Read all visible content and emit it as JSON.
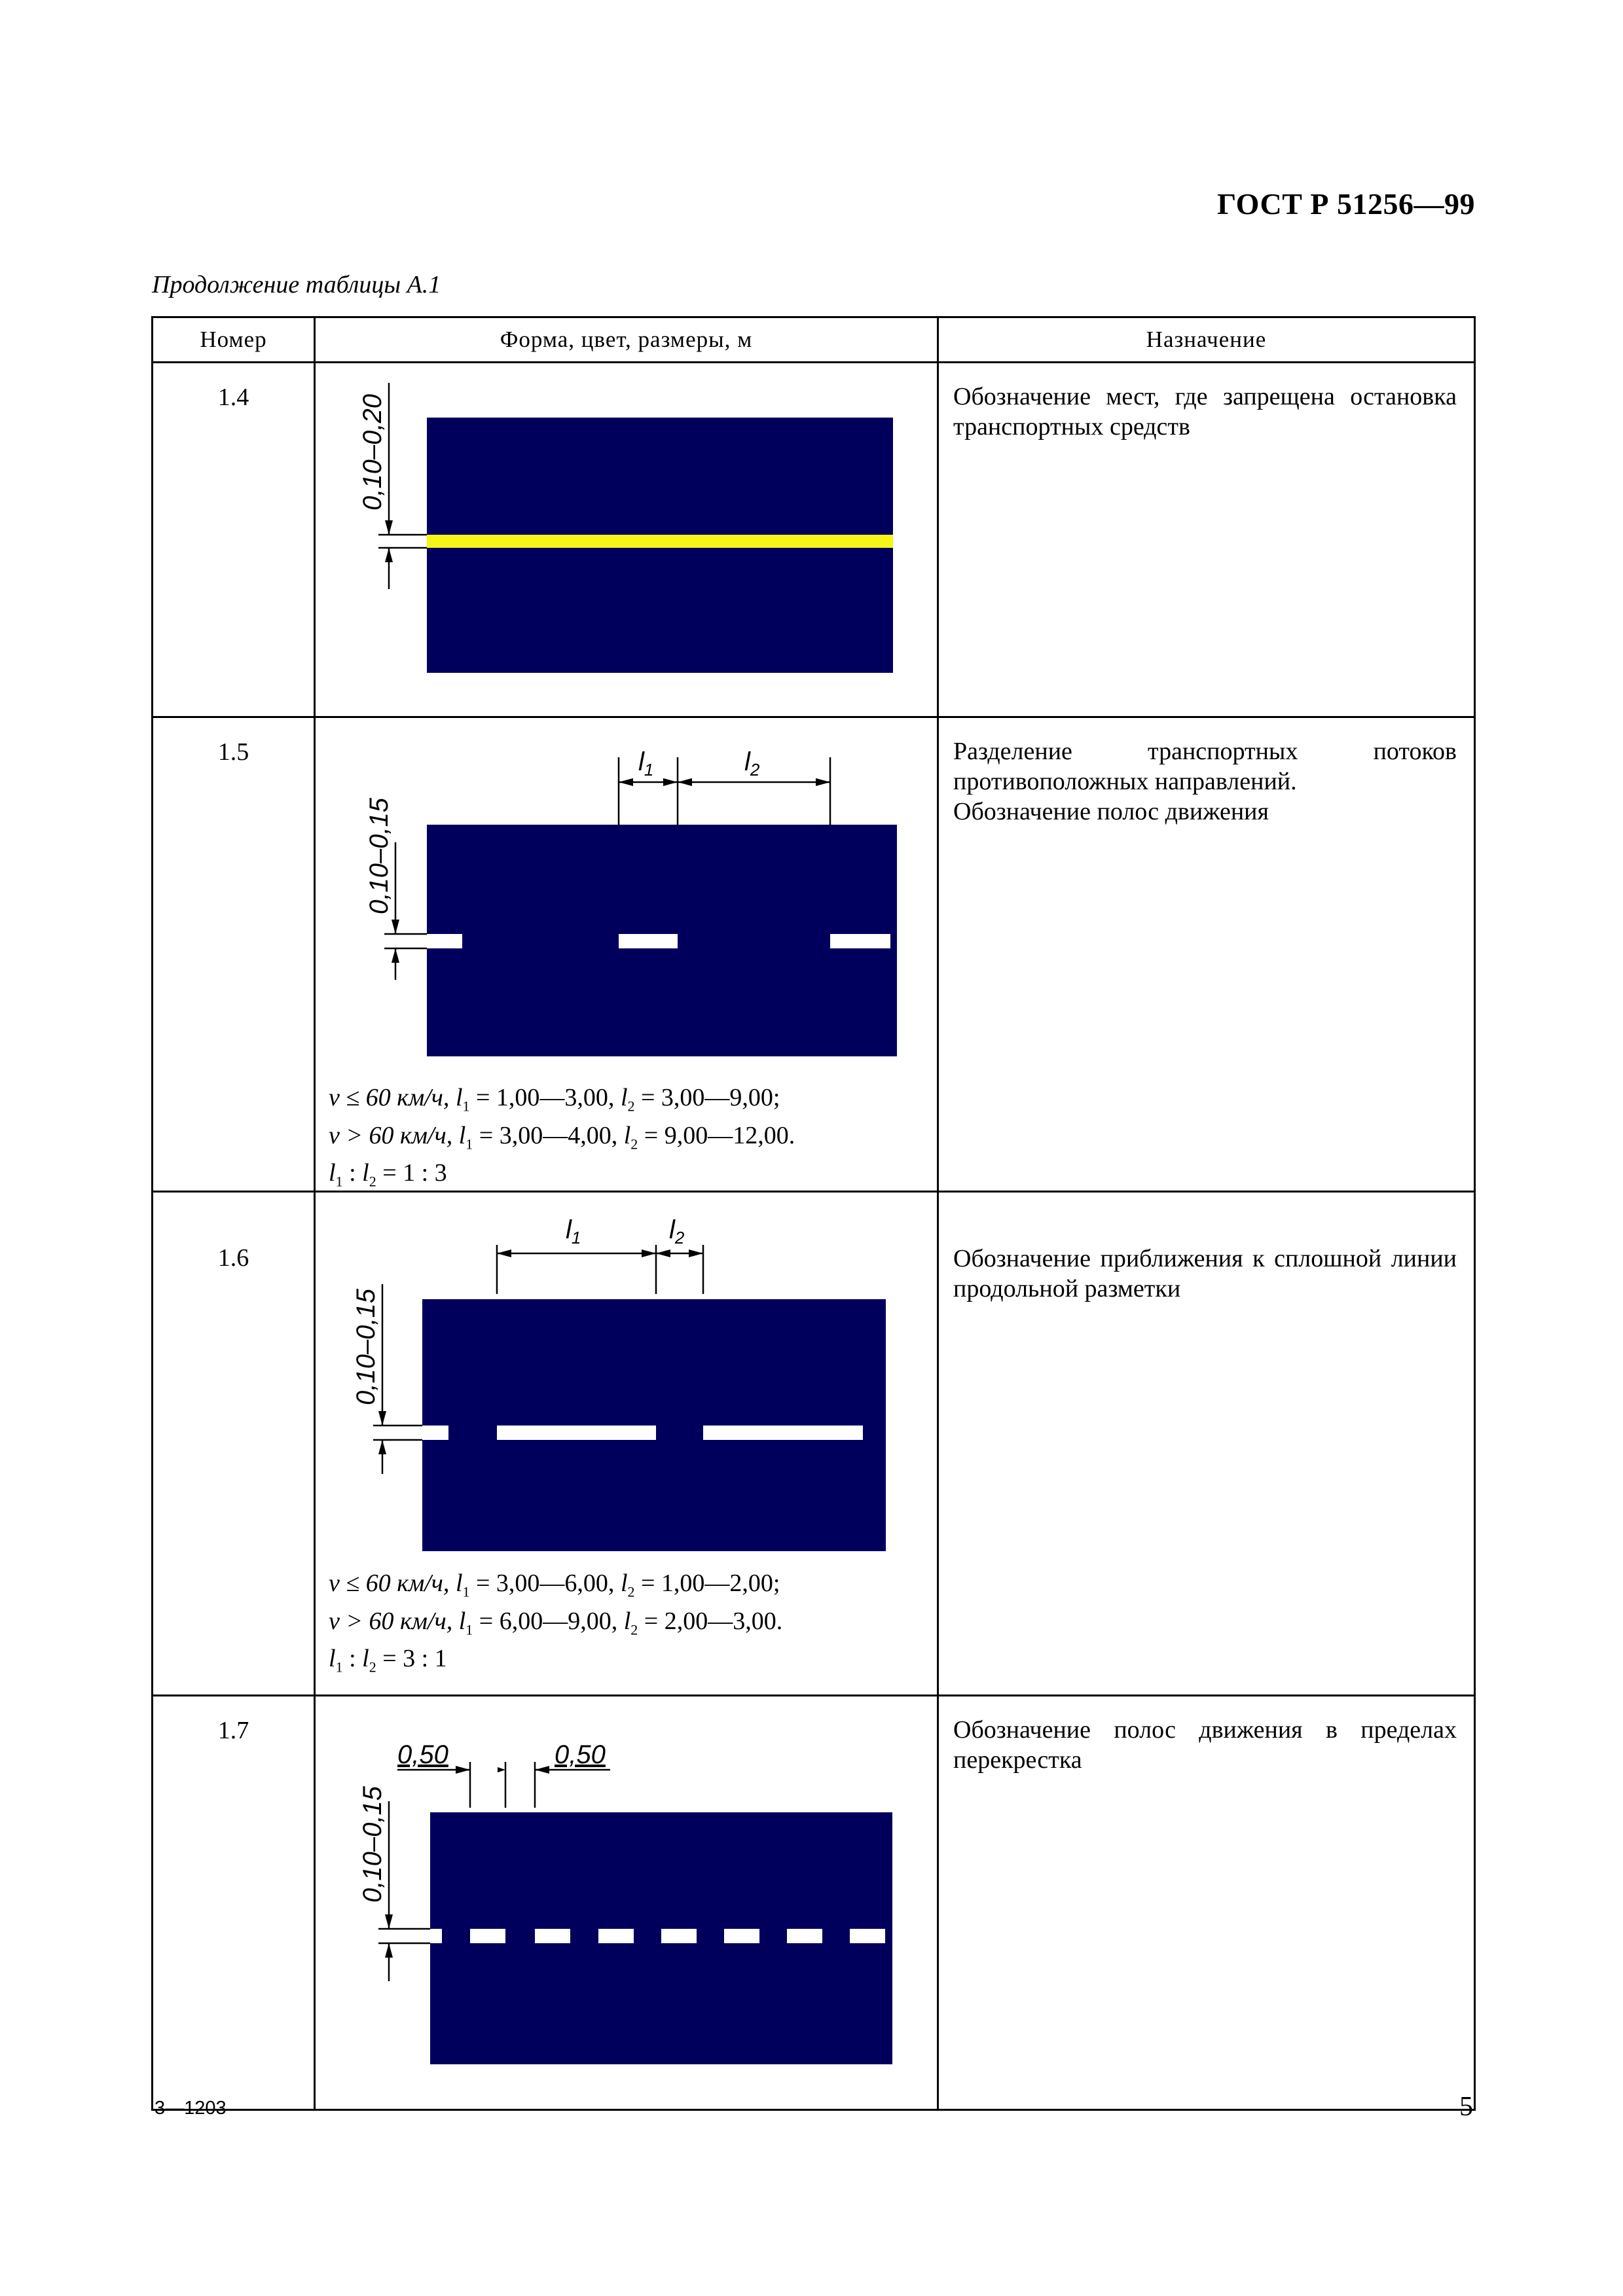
{
  "header": {
    "standard": "ГОСТ Р 51256—99"
  },
  "caption": "Продолжение таблицы   А.1",
  "table": {
    "columns": [
      "Номер",
      "Форма, цвет, размеры, м",
      "Назначение"
    ],
    "rows": [
      {
        "number": "1.4",
        "purpose": "Обозначение мест, где запрещена остановка транспортных средств",
        "dims": {
          "width": "0,10–0,20"
        },
        "colors": {
          "road": "#00005c",
          "line": "#f5f51a"
        }
      },
      {
        "number": "1.5",
        "purpose": "Разделение транспортных потоков противоположных направлений.\nОбозначение полос движения",
        "dims": {
          "width": "0,10–0,15",
          "l1": "l",
          "l1_sub": "1",
          "l2": "l",
          "l2_sub": "2"
        },
        "formula": [
          [
            "v ≤ 60 км/ч, ",
            "l",
            "1",
            " = 1,00—3,00, ",
            "l",
            "2",
            " = 3,00—9,00;"
          ],
          [
            "v > 60 км/ч, ",
            "l",
            "1",
            " = 3,00—4,00, ",
            "l",
            "2",
            " = 9,00—12,00."
          ],
          [
            "",
            "l",
            "1",
            " : ",
            "l",
            "2",
            " = 1 : 3"
          ]
        ],
        "colors": {
          "road": "#00005c",
          "line": "#ffffff"
        }
      },
      {
        "number": "1.6",
        "purpose": "Обозначение приближения к сплошной линии продольной разметки",
        "dims": {
          "width": "0,10–0,15",
          "l1": "l",
          "l1_sub": "1",
          "l2": "l",
          "l2_sub": "2"
        },
        "formula": [
          [
            "v ≤ 60 км/ч, ",
            "l",
            "1",
            " = 3,00—6,00, ",
            "l",
            "2",
            " = 1,00—2,00;"
          ],
          [
            "v > 60 км/ч, ",
            "l",
            "1",
            " = 6,00—9,00, ",
            "l",
            "2",
            " = 2,00—3,00."
          ],
          [
            "",
            "l",
            "1",
            " : ",
            "l",
            "2",
            " = 3 : 1"
          ]
        ],
        "colors": {
          "road": "#00005c",
          "line": "#ffffff"
        }
      },
      {
        "number": "1.7",
        "purpose": "Обозначение полос движения в пределах перекрестка",
        "dims": {
          "width": "0,10–0,15",
          "a": "0,50",
          "b": "0,50"
        },
        "colors": {
          "road": "#00005c",
          "line": "#ffffff"
        }
      }
    ]
  },
  "footer": {
    "left": "3—1203",
    "page": "5"
  }
}
